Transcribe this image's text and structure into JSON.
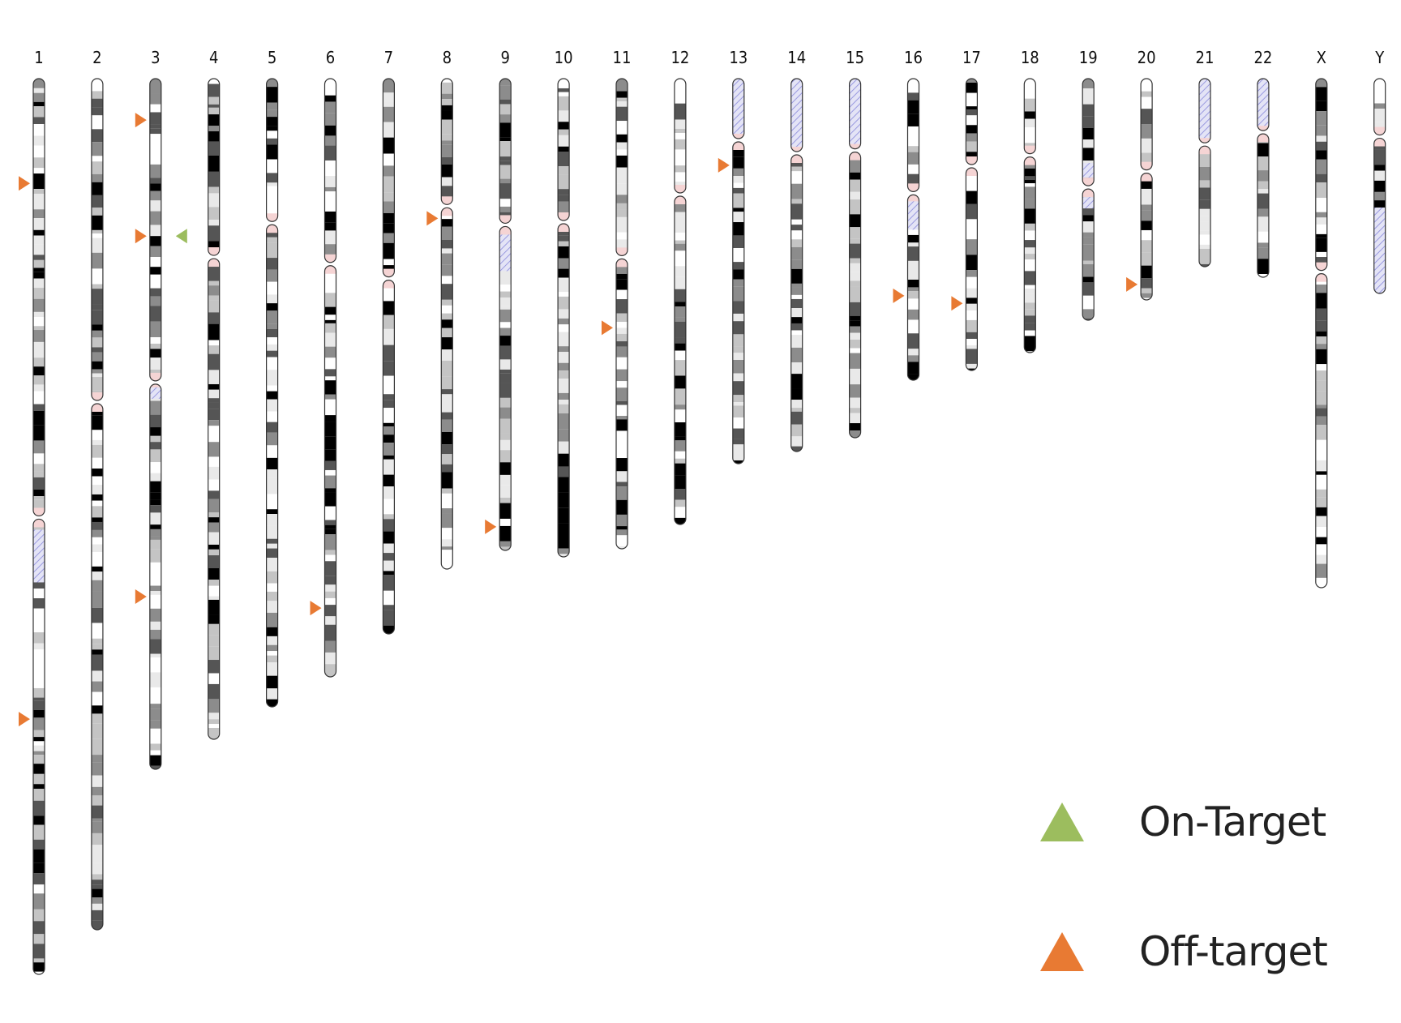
{
  "colors": {
    "on_target": "#9cbd5e",
    "off_target": "#e87a33",
    "centromere": "#f5d4d4",
    "hatch": "#8e8ee0"
  },
  "legend": {
    "on_target_label": "On-Target",
    "off_target_label": "Off-target",
    "on_target_icon": "green-triangle-icon",
    "off_target_icon": "orange-triangle-icon"
  },
  "chromosomes": [
    {
      "name": "1",
      "length": 1105,
      "centromere": 0.49,
      "marks": [
        {
          "type": "off",
          "pos": 0.117
        },
        {
          "type": "off",
          "pos": 0.715
        }
      ]
    },
    {
      "name": "2",
      "length": 1050,
      "centromere": 0.38,
      "marks": []
    },
    {
      "name": "3",
      "length": 852,
      "centromere": 0.44,
      "marks": [
        {
          "type": "off",
          "pos": 0.06
        },
        {
          "type": "off",
          "pos": 0.228
        },
        {
          "type": "on",
          "pos": 0.228
        },
        {
          "type": "off",
          "pos": 0.75
        }
      ]
    },
    {
      "name": "4",
      "length": 815,
      "centromere": 0.27,
      "marks": []
    },
    {
      "name": "5",
      "length": 775,
      "centromere": 0.23,
      "marks": []
    },
    {
      "name": "6",
      "length": 738,
      "centromere": 0.31,
      "marks": [
        {
          "type": "off",
          "pos": 0.885
        }
      ]
    },
    {
      "name": "7",
      "length": 685,
      "centromere": 0.36,
      "marks": []
    },
    {
      "name": "8",
      "length": 605,
      "centromere": 0.26,
      "marks": [
        {
          "type": "off",
          "pos": 0.285
        }
      ]
    },
    {
      "name": "9",
      "length": 582,
      "centromere": 0.31,
      "marks": [
        {
          "type": "off",
          "pos": 0.95
        }
      ]
    },
    {
      "name": "10",
      "length": 590,
      "centromere": 0.3,
      "marks": []
    },
    {
      "name": "11",
      "length": 580,
      "centromere": 0.38,
      "marks": [
        {
          "type": "off",
          "pos": 0.53
        }
      ]
    },
    {
      "name": "12",
      "length": 550,
      "centromere": 0.26,
      "marks": []
    },
    {
      "name": "13",
      "length": 475,
      "centromere": 0.16,
      "marks": [
        {
          "type": "off",
          "pos": 0.225
        }
      ]
    },
    {
      "name": "14",
      "length": 460,
      "centromere": 0.2,
      "marks": []
    },
    {
      "name": "15",
      "length": 443,
      "centromere": 0.2,
      "marks": []
    },
    {
      "name": "16",
      "length": 372,
      "centromere": 0.38,
      "marks": [
        {
          "type": "off",
          "pos": 0.72
        }
      ]
    },
    {
      "name": "17",
      "length": 360,
      "centromere": 0.3,
      "marks": [
        {
          "type": "off",
          "pos": 0.77
        }
      ]
    },
    {
      "name": "18",
      "length": 338,
      "centromere": 0.28,
      "marks": []
    },
    {
      "name": "19",
      "length": 298,
      "centromere": 0.45,
      "marks": []
    },
    {
      "name": "20",
      "length": 273,
      "centromere": 0.42,
      "marks": [
        {
          "type": "off",
          "pos": 0.93
        }
      ]
    },
    {
      "name": "21",
      "length": 232,
      "centromere": 0.35,
      "marks": []
    },
    {
      "name": "22",
      "length": 245,
      "centromere": 0.27,
      "marks": []
    },
    {
      "name": "X",
      "length": 628,
      "centromere": 0.38,
      "marks": []
    },
    {
      "name": "Y",
      "length": 265,
      "centromere": 0.27,
      "marks": []
    }
  ]
}
